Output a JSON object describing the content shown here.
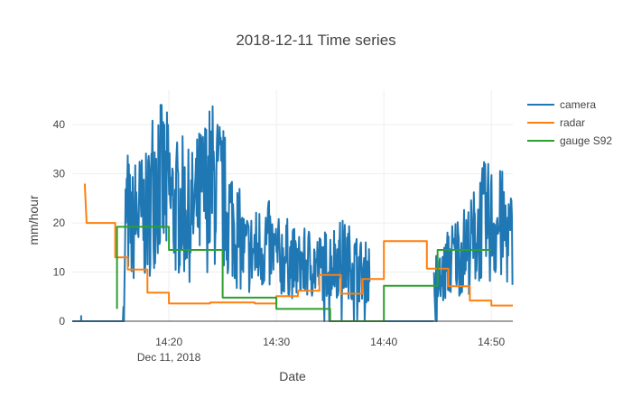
{
  "chart_data": {
    "type": "line",
    "title": "2018-12-11 Time series",
    "xlabel": "Date",
    "ylabel": "mm/hour",
    "x_axis": {
      "type": "time",
      "range": [
        "2018-12-11 14:11:00",
        "2018-12-11 14:52:00"
      ],
      "ticks": [
        {
          "value": "2018-12-11 14:20",
          "label": "14:20",
          "sublabel": "Dec 11, 2018"
        },
        {
          "value": "2018-12-11 14:30",
          "label": "14:30",
          "sublabel": ""
        },
        {
          "value": "2018-12-11 14:40",
          "label": "14:40",
          "sublabel": ""
        },
        {
          "value": "2018-12-11 14:50",
          "label": "14:50",
          "sublabel": ""
        }
      ]
    },
    "y_axis": {
      "range": [
        0,
        47
      ],
      "ticks": [
        0,
        10,
        20,
        30,
        40
      ]
    },
    "grid": true,
    "legend": {
      "position": "top-right"
    },
    "series": [
      {
        "name": "camera",
        "color": "#1f77b4",
        "noise_points": [
          [
            "14:15:50",
            0
          ],
          [
            "14:16:00",
            24
          ],
          [
            "14:16:30",
            18
          ],
          [
            "14:17:00",
            22
          ],
          [
            "14:17:30",
            21
          ],
          [
            "14:18:00",
            21
          ],
          [
            "14:18:30",
            28
          ],
          [
            "14:19:00",
            32
          ],
          [
            "14:19:30",
            27
          ],
          [
            "14:20:00",
            26
          ],
          [
            "14:20:30",
            22
          ],
          [
            "14:21:00",
            24
          ],
          [
            "14:22:00",
            21
          ],
          [
            "14:23:00",
            25
          ],
          [
            "14:24:00",
            28
          ],
          [
            "14:25:00",
            25
          ],
          [
            "14:25:30",
            22
          ],
          [
            "14:26:00",
            20
          ],
          [
            "14:27:00",
            14
          ],
          [
            "14:28:00",
            14
          ],
          [
            "14:29:00",
            16
          ],
          [
            "14:30:00",
            13
          ],
          [
            "14:31:00",
            13
          ],
          [
            "14:32:00",
            11
          ],
          [
            "14:33:00",
            12
          ],
          [
            "14:34:00",
            11
          ],
          [
            "14:35:00",
            12
          ],
          [
            "14:36:00",
            13
          ],
          [
            "14:37:00",
            12
          ],
          [
            "14:38:00",
            10
          ],
          [
            "14:38:40",
            10
          ],
          [
            "14:45:20",
            8
          ],
          [
            "14:46:00",
            12
          ],
          [
            "14:47:00",
            14
          ],
          [
            "14:48:00",
            15
          ],
          [
            "14:49:00",
            20
          ],
          [
            "14:50:00",
            20
          ],
          [
            "14:51:00",
            19
          ],
          [
            "14:52:00",
            16
          ]
        ],
        "zero_segments": [
          [
            "14:11:00",
            "14:15:40"
          ],
          [
            "14:38:40",
            "14:44:40"
          ]
        ]
      },
      {
        "name": "radar",
        "color": "#ff7f0e",
        "points": [
          [
            "14:12:10",
            28
          ],
          [
            "14:12:20",
            20
          ],
          [
            "14:15:00",
            20
          ],
          [
            "14:15:00",
            13
          ],
          [
            "14:16:10",
            13
          ],
          [
            "14:16:10",
            10.5
          ],
          [
            "14:18:00",
            10.5
          ],
          [
            "14:18:00",
            5.8
          ],
          [
            "14:20:00",
            5.8
          ],
          [
            "14:20:00",
            3.6
          ],
          [
            "14:23:50",
            3.6
          ],
          [
            "14:23:50",
            3.8
          ],
          [
            "14:28:00",
            3.8
          ],
          [
            "14:28:00",
            3.6
          ],
          [
            "14:30:00",
            3.6
          ],
          [
            "14:30:00",
            5.1
          ],
          [
            "14:32:00",
            5.1
          ],
          [
            "14:32:00",
            6.2
          ],
          [
            "14:34:00",
            6.2
          ],
          [
            "14:34:00",
            9.4
          ],
          [
            "14:36:00",
            9.4
          ],
          [
            "14:36:00",
            5.6
          ],
          [
            "14:38:00",
            5.6
          ],
          [
            "14:38:00",
            8.6
          ],
          [
            "14:40:00",
            8.6
          ],
          [
            "14:40:00",
            16.3
          ],
          [
            "14:44:00",
            16.3
          ],
          [
            "14:44:00",
            10.7
          ],
          [
            "14:46:00",
            10.7
          ],
          [
            "14:46:00",
            7.1
          ],
          [
            "14:48:00",
            7.1
          ],
          [
            "14:48:00",
            4.2
          ],
          [
            "14:50:00",
            4.2
          ],
          [
            "14:50:00",
            3.2
          ],
          [
            "14:52:00",
            3.2
          ]
        ]
      },
      {
        "name": "gauge S92",
        "color": "#2ca02c",
        "points": [
          [
            "14:15:10",
            2.5
          ],
          [
            "14:15:10",
            19.2
          ],
          [
            "14:20:00",
            19.2
          ],
          [
            "14:20:00",
            14.5
          ],
          [
            "14:25:00",
            14.5
          ],
          [
            "14:25:00",
            4.8
          ],
          [
            "14:30:00",
            4.8
          ],
          [
            "14:30:00",
            2.5
          ],
          [
            "14:35:00",
            2.5
          ],
          [
            "14:35:00",
            0
          ],
          [
            "14:40:00",
            0
          ],
          [
            "14:40:00",
            7.2
          ],
          [
            "14:45:00",
            7.2
          ],
          [
            "14:45:00",
            14.5
          ],
          [
            "14:50:00",
            14.5
          ]
        ]
      }
    ]
  }
}
